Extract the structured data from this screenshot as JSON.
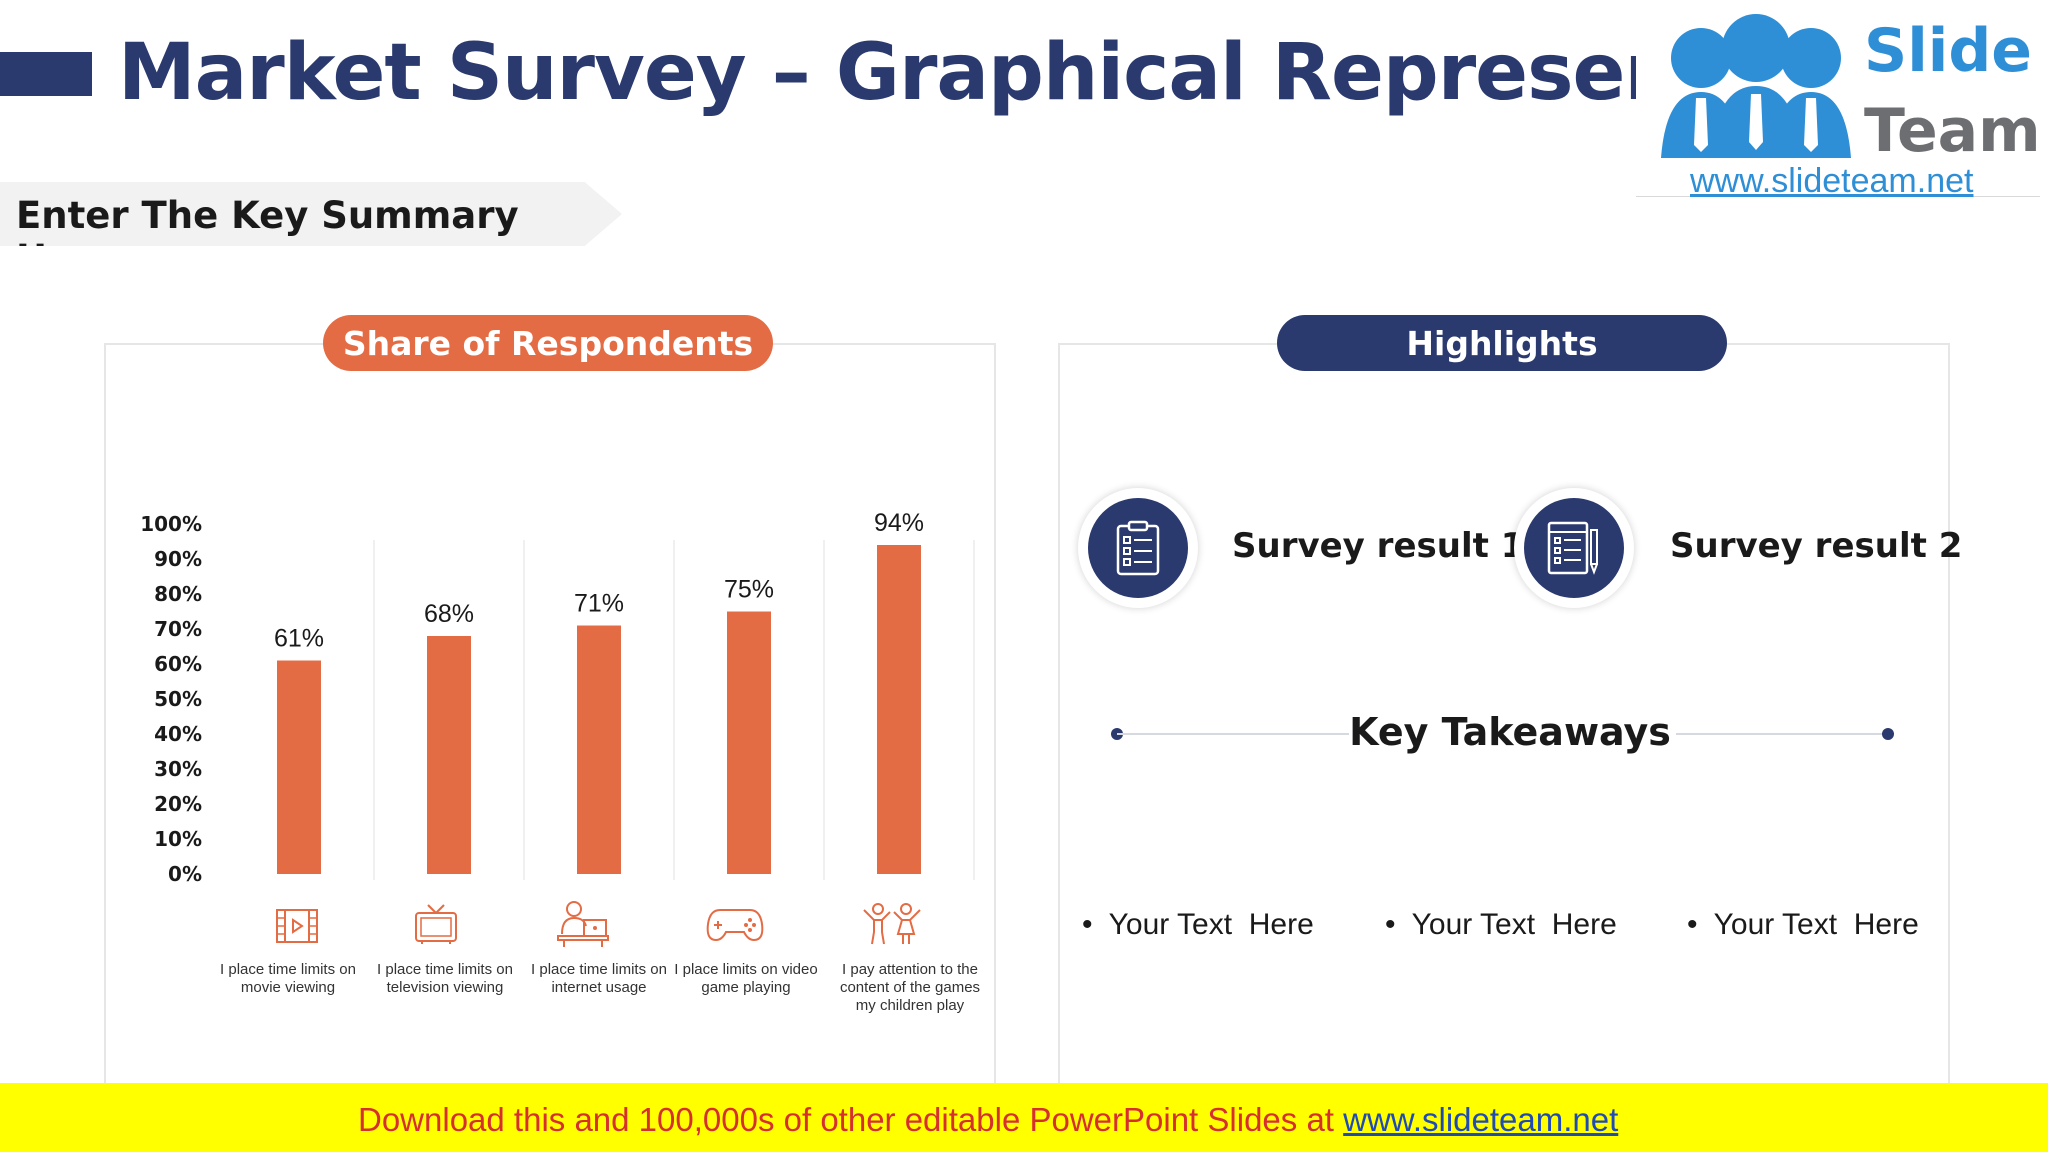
{
  "slide": {
    "title": "Market Survey – Graphical Representation",
    "summary": "Enter The Key Summary Here"
  },
  "logo": {
    "word1": "Slide",
    "word2": "Team",
    "url": "www.slideteam.net"
  },
  "left_panel": {
    "header": "Share of Respondents",
    "categories": [
      {
        "label": "I place time limits on movie viewing",
        "icon": "film-icon"
      },
      {
        "label": "I place time limits on television viewing",
        "icon": "television-icon"
      },
      {
        "label": "I place time limits on internet usage",
        "icon": "computer-user-icon"
      },
      {
        "label": "I place limits on video game playing",
        "icon": "gamepad-icon"
      },
      {
        "label": "I pay attention to the content of the games my children play",
        "icon": "children-icon"
      }
    ]
  },
  "chart_data": {
    "type": "bar",
    "categories": [
      "I place time limits on movie viewing",
      "I place time limits on television viewing",
      "I place time limits on internet usage",
      "I place limits on video game playing",
      "I pay attention to the content of the games my children play"
    ],
    "values": [
      61,
      68,
      71,
      75,
      94
    ],
    "data_labels": [
      "61%",
      "68%",
      "71%",
      "75%",
      "94%"
    ],
    "yticks": [
      "0%",
      "10%",
      "20%",
      "30%",
      "40%",
      "50%",
      "60%",
      "70%",
      "80%",
      "90%",
      "100%"
    ],
    "ylim": [
      0,
      100
    ],
    "title": "Share of Respondents",
    "bar_color": "#e46c44",
    "grid": false
  },
  "right_panel": {
    "header": "Highlights",
    "results": [
      {
        "label": "Survey result 1",
        "icon": "clipboard-checklist-icon"
      },
      {
        "label": "Survey result 2",
        "icon": "document-pen-icon"
      }
    ],
    "takeaways_title": "Key Takeaways",
    "bullets": [
      "Your Text  Here",
      "Your Text  Here",
      "Your Text  Here"
    ]
  },
  "footer": {
    "text": "Download this and 100,000s of other editable PowerPoint Slides at ",
    "link": "www.slideteam.net"
  },
  "colors": {
    "navy": "#2b3a6e",
    "orange": "#e46c44",
    "footer_bg": "#ffff00",
    "footer_text": "#d62f2f"
  }
}
